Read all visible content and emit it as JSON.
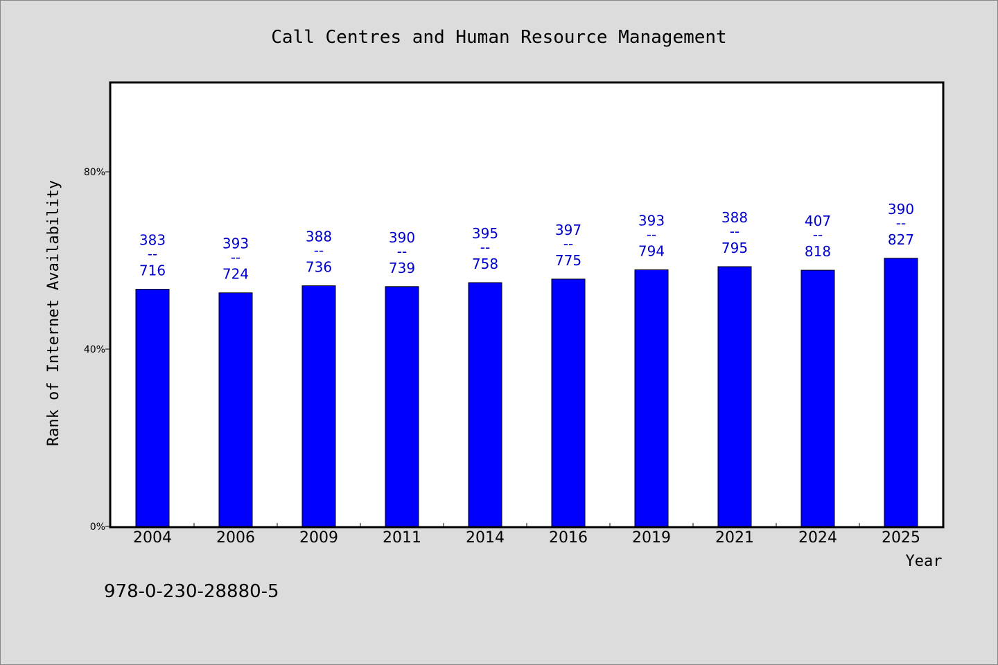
{
  "chart_data": {
    "type": "bar",
    "title": "Call Centres and Human Resource Management",
    "xlabel": "Year",
    "ylabel": "Rank of Internet Availability",
    "categories": [
      "2004",
      "2006",
      "2009",
      "2011",
      "2014",
      "2016",
      "2019",
      "2021",
      "2024",
      "2025"
    ],
    "values": [
      53.5,
      52.7,
      54.3,
      54.1,
      55.0,
      55.8,
      57.9,
      58.6,
      57.8,
      60.5
    ],
    "labels_top": [
      "383",
      "393",
      "388",
      "390",
      "395",
      "397",
      "393",
      "388",
      "407",
      "390"
    ],
    "labels_bottom": [
      "716",
      "724",
      "736",
      "739",
      "758",
      "775",
      "794",
      "795",
      "818",
      "827"
    ],
    "label_separator": "--",
    "yticks": [
      {
        "value": 0,
        "label": "0%"
      },
      {
        "value": 40,
        "label": "40%"
      },
      {
        "value": 80,
        "label": "80%"
      }
    ],
    "ylim": [
      0,
      100
    ],
    "bar_color": "#0000ff",
    "label_color": "#0000cc",
    "grid": false
  },
  "footer_text": "978-0-230-28880-5"
}
